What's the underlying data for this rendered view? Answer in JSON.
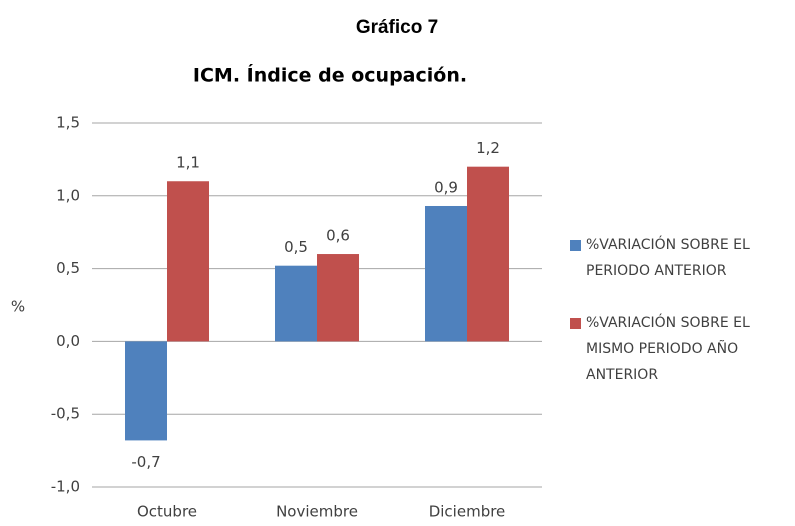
{
  "chart_data": {
    "type": "bar",
    "title": "Gráfico 7",
    "subtitle": "ICM. Índice de ocupación.",
    "ylabel": "%",
    "categories": [
      "Octubre",
      "Noviembre",
      "Diciembre"
    ],
    "series": [
      {
        "name": "%VARIACIÓN SOBRE EL PERIODO ANTERIOR",
        "color": "#4f81bd",
        "values": [
          -0.68,
          0.52,
          0.93
        ],
        "value_labels": [
          "-0,7",
          "0,5",
          "0,9"
        ]
      },
      {
        "name": "%VARIACIÓN SOBRE EL MISMO PERIODO AÑO ANTERIOR",
        "color": "#c0504d",
        "values": [
          1.1,
          0.6,
          1.2
        ],
        "value_labels": [
          "1,1",
          "0,6",
          "1,2"
        ]
      }
    ],
    "ylim": [
      -1.0,
      1.5
    ],
    "yticks": [
      {
        "value": -1.0,
        "label": "-1,0"
      },
      {
        "value": -0.5,
        "label": "-0,5"
      },
      {
        "value": 0.0,
        "label": "0,0"
      },
      {
        "value": 0.5,
        "label": "0,5"
      },
      {
        "value": 1.0,
        "label": "1,0"
      },
      {
        "value": 1.5,
        "label": "1,5"
      }
    ],
    "grid": true,
    "legend": "right"
  }
}
